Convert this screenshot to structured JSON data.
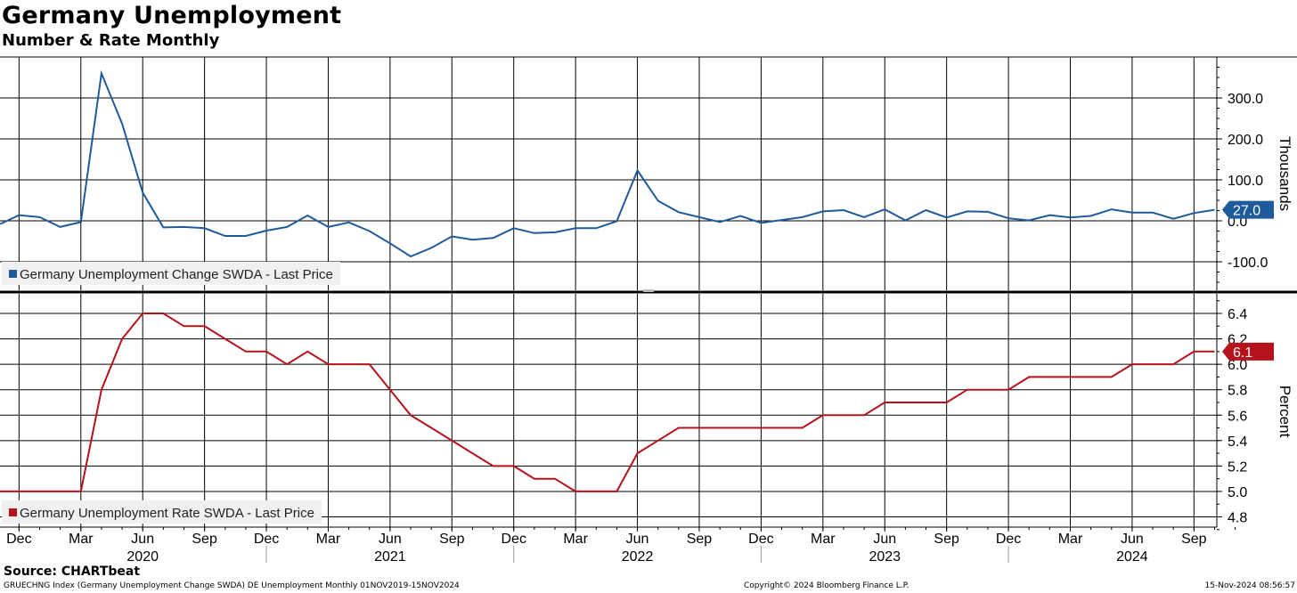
{
  "header": {
    "title": "Germany Unemployment",
    "subtitle": "Number & Rate Monthly"
  },
  "footer": {
    "source": "Source: CHARTbeat",
    "index_info": "GRUECHNG Index (Germany Unemployment Change SWDA) DE Unemployment  Monthly 01NOV2019-15NOV2024",
    "copyright": "Copyright© 2024 Bloomberg Finance L.P.",
    "timestamp": "15-Nov-2024 08:56:57"
  },
  "colors": {
    "change_series": "#1f5a9a",
    "rate_series": "#b5121b",
    "grid": "#000000"
  },
  "chart_data": [
    {
      "type": "line",
      "panel": "top",
      "series": [
        {
          "name": "Germany Unemployment Change SWDA - Last Price",
          "last_value_label": "27.0",
          "color": "#1f5a9a",
          "x": [
            "2019-11",
            "2019-12",
            "2020-01",
            "2020-02",
            "2020-03",
            "2020-04",
            "2020-05",
            "2020-06",
            "2020-07",
            "2020-08",
            "2020-09",
            "2020-10",
            "2020-11",
            "2020-12",
            "2021-01",
            "2021-02",
            "2021-03",
            "2021-04",
            "2021-05",
            "2021-06",
            "2021-07",
            "2021-08",
            "2021-09",
            "2021-10",
            "2021-11",
            "2021-12",
            "2022-01",
            "2022-02",
            "2022-03",
            "2022-04",
            "2022-05",
            "2022-06",
            "2022-07",
            "2022-08",
            "2022-09",
            "2022-10",
            "2022-11",
            "2022-12",
            "2023-01",
            "2023-02",
            "2023-03",
            "2023-04",
            "2023-05",
            "2023-06",
            "2023-07",
            "2023-08",
            "2023-09",
            "2023-10",
            "2023-11",
            "2023-12",
            "2024-01",
            "2024-02",
            "2024-03",
            "2024-04",
            "2024-05",
            "2024-06",
            "2024-07",
            "2024-08",
            "2024-09",
            "2024-10"
          ],
          "values": [
            -8,
            14,
            9,
            -15,
            -3,
            360,
            237,
            69,
            -16,
            -15,
            -18,
            -37,
            -37,
            -24,
            -15,
            13,
            -15,
            -4,
            -25,
            -55,
            -87,
            -66,
            -38,
            -46,
            -42,
            -18,
            -30,
            -28,
            -18,
            -18,
            -1,
            123,
            49,
            21,
            9,
            -3,
            12,
            -5,
            2,
            9,
            23,
            26,
            9,
            28,
            1,
            26,
            8,
            23,
            22,
            6,
            1,
            14,
            8,
            12,
            28,
            20,
            20,
            5,
            19,
            27
          ]
        }
      ],
      "ylabel": "Thousands",
      "ylim": [
        -170,
        395
      ],
      "yticks": [
        -100,
        0,
        100,
        200,
        300
      ],
      "ytick_labels": [
        "-100.0",
        "0.0",
        "100.0",
        "200.0",
        "300.0"
      ],
      "grid": true,
      "legend": "bottom-left"
    },
    {
      "type": "line",
      "panel": "bottom",
      "series": [
        {
          "name": "Germany Unemployment Rate SWDA - Last Price",
          "last_value_label": "6.1",
          "color": "#b5121b",
          "x": [
            "2019-11",
            "2019-12",
            "2020-01",
            "2020-02",
            "2020-03",
            "2020-04",
            "2020-05",
            "2020-06",
            "2020-07",
            "2020-08",
            "2020-09",
            "2020-10",
            "2020-11",
            "2020-12",
            "2021-01",
            "2021-02",
            "2021-03",
            "2021-04",
            "2021-05",
            "2021-06",
            "2021-07",
            "2021-08",
            "2021-09",
            "2021-10",
            "2021-11",
            "2021-12",
            "2022-01",
            "2022-02",
            "2022-03",
            "2022-04",
            "2022-05",
            "2022-06",
            "2022-07",
            "2022-08",
            "2022-09",
            "2022-10",
            "2022-11",
            "2022-12",
            "2023-01",
            "2023-02",
            "2023-03",
            "2023-04",
            "2023-05",
            "2023-06",
            "2023-07",
            "2023-08",
            "2023-09",
            "2023-10",
            "2023-11",
            "2023-12",
            "2024-01",
            "2024-02",
            "2024-03",
            "2024-04",
            "2024-05",
            "2024-06",
            "2024-07",
            "2024-08",
            "2024-09",
            "2024-10"
          ],
          "values": [
            5.0,
            5.0,
            5.0,
            5.0,
            5.0,
            5.8,
            6.2,
            6.4,
            6.4,
            6.3,
            6.3,
            6.2,
            6.1,
            6.1,
            6.0,
            6.1,
            6.0,
            6.0,
            6.0,
            5.8,
            5.6,
            5.5,
            5.4,
            5.3,
            5.2,
            5.2,
            5.1,
            5.1,
            5.0,
            5.0,
            5.0,
            5.3,
            5.4,
            5.5,
            5.5,
            5.5,
            5.5,
            5.5,
            5.5,
            5.5,
            5.6,
            5.6,
            5.6,
            5.7,
            5.7,
            5.7,
            5.7,
            5.8,
            5.8,
            5.8,
            5.9,
            5.9,
            5.9,
            5.9,
            5.9,
            6.0,
            6.0,
            6.0,
            6.1,
            6.1
          ]
        }
      ],
      "ylabel": "Percent",
      "ylim": [
        4.7,
        6.5
      ],
      "yticks": [
        4.8,
        5.0,
        5.2,
        5.4,
        5.6,
        5.8,
        6.0,
        6.2,
        6.4
      ],
      "ytick_labels": [
        "4.8",
        "5.0",
        "5.2",
        "5.4",
        "5.6",
        "5.8",
        "6.0",
        "6.2",
        "6.4"
      ],
      "grid": true,
      "legend": "bottom-left"
    }
  ],
  "x_axis": {
    "month_ticks": [
      {
        "label": "Dec",
        "month": "2019-12"
      },
      {
        "label": "Mar",
        "month": "2020-03"
      },
      {
        "label": "Jun",
        "month": "2020-06"
      },
      {
        "label": "Sep",
        "month": "2020-09"
      },
      {
        "label": "Dec",
        "month": "2020-12"
      },
      {
        "label": "Mar",
        "month": "2021-03"
      },
      {
        "label": "Jun",
        "month": "2021-06"
      },
      {
        "label": "Sep",
        "month": "2021-09"
      },
      {
        "label": "Dec",
        "month": "2021-12"
      },
      {
        "label": "Mar",
        "month": "2022-03"
      },
      {
        "label": "Jun",
        "month": "2022-06"
      },
      {
        "label": "Sep",
        "month": "2022-09"
      },
      {
        "label": "Dec",
        "month": "2022-12"
      },
      {
        "label": "Mar",
        "month": "2023-03"
      },
      {
        "label": "Jun",
        "month": "2023-06"
      },
      {
        "label": "Sep",
        "month": "2023-09"
      },
      {
        "label": "Dec",
        "month": "2023-12"
      },
      {
        "label": "Mar",
        "month": "2024-03"
      },
      {
        "label": "Jun",
        "month": "2024-06"
      },
      {
        "label": "Sep",
        "month": "2024-09"
      }
    ],
    "year_labels": [
      {
        "label": "2020",
        "month": "2020-06"
      },
      {
        "label": "2021",
        "month": "2021-06"
      },
      {
        "label": "2022",
        "month": "2022-06"
      },
      {
        "label": "2023",
        "month": "2023-06"
      },
      {
        "label": "2024",
        "month": "2024-06"
      }
    ],
    "year_separators": [
      "2020-12",
      "2021-12",
      "2022-12",
      "2023-12"
    ]
  }
}
